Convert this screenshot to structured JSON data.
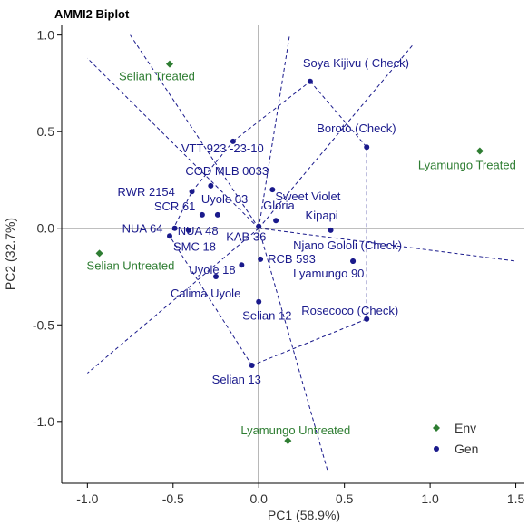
{
  "chart_data": {
    "type": "scatter",
    "title": "AMMI2 Biplot",
    "xlabel": "PC1 (58.9%)",
    "ylabel": "PC2 (32.7%)",
    "xlim": [
      -1.15,
      1.55
    ],
    "ylim": [
      -1.32,
      1.05
    ],
    "xticks": [
      -1.0,
      -0.5,
      0.0,
      0.5,
      1.0,
      1.5
    ],
    "xtick_labels": [
      "-1.0",
      "-0.5",
      "0.0",
      "0.5",
      "1.0",
      "1.5"
    ],
    "yticks": [
      -1.0,
      -0.5,
      0.0,
      0.5,
      1.0
    ],
    "ytick_labels": [
      "-1.0",
      "-0.5",
      "0.0",
      "0.5",
      "1.0"
    ],
    "legend_position": "bottom-right",
    "series": [
      {
        "name": "Env",
        "color": "#2e7d32",
        "marker": "diamond",
        "points": [
          {
            "label": "Selian Treated",
            "x": -0.52,
            "y": 0.85
          },
          {
            "label": "Lyamungo Treated",
            "x": 1.29,
            "y": 0.4
          },
          {
            "label": "Selian Untreated",
            "x": -0.93,
            "y": -0.13
          },
          {
            "label": "Lyamungo Untreated",
            "x": 0.17,
            "y": -1.1
          }
        ]
      },
      {
        "name": "Gen",
        "color": "#1a1a8c",
        "marker": "circle",
        "points": [
          {
            "label": "Soya Kijivu ( Check)",
            "x": 0.3,
            "y": 0.76
          },
          {
            "label": "VTT 923 -23-10",
            "x": -0.15,
            "y": 0.45
          },
          {
            "label": "Boroto (Check)",
            "x": 0.63,
            "y": 0.42
          },
          {
            "label": "COD MLB 0033",
            "x": -0.28,
            "y": 0.22
          },
          {
            "label": "RWR 2154",
            "x": -0.39,
            "y": 0.19
          },
          {
            "label": "Sweet Violet",
            "x": 0.08,
            "y": 0.2
          },
          {
            "label": "SCR 61",
            "x": -0.33,
            "y": 0.07
          },
          {
            "label": "Uyole 03",
            "x": -0.24,
            "y": 0.07
          },
          {
            "label": "Gloria",
            "x": 0.1,
            "y": 0.04
          },
          {
            "label": "NUA 64",
            "x": -0.49,
            "y": 0.0
          },
          {
            "label": "NUA 48",
            "x": -0.41,
            "y": -0.01
          },
          {
            "label": "KAB 36",
            "x": 0.0,
            "y": 0.01
          },
          {
            "label": "Kipapi",
            "x": 0.42,
            "y": -0.01
          },
          {
            "label": "SMC 18",
            "x": -0.52,
            "y": -0.04
          },
          {
            "label": "RCB 593",
            "x": 0.01,
            "y": -0.16
          },
          {
            "label": "Njano Gololi (Check)",
            "x": 0.55,
            "y": -0.17
          },
          {
            "label": "Uyole 18",
            "x": -0.1,
            "y": -0.19
          },
          {
            "label": "Lyamungo 90",
            "x": 0.55,
            "y": -0.17
          },
          {
            "label": "Calima Uyole",
            "x": -0.25,
            "y": -0.25
          },
          {
            "label": "Selian 12",
            "x": 0.0,
            "y": -0.38
          },
          {
            "label": "Rosecoco (Check)",
            "x": 0.63,
            "y": -0.47
          },
          {
            "label": "Selian 13",
            "x": -0.04,
            "y": -0.71
          }
        ]
      }
    ],
    "hull_vertices": [
      "Soya Kijivu ( Check)",
      "Boroto (Check)",
      "Rosecoco (Check)",
      "Selian 13",
      "SMC 18",
      "RWR 2154",
      "VTT 923 -23-10"
    ],
    "sector_rays_end": [
      {
        "x": 0.9,
        "y": 0.95
      },
      {
        "x": -0.75,
        "y": 1.0
      },
      {
        "x": -1.0,
        "y": 0.88
      },
      {
        "x": -1.0,
        "y": -0.75
      },
      {
        "x": 0.4,
        "y": -1.25
      },
      {
        "x": 1.5,
        "y": -0.17
      },
      {
        "x": 0.18,
        "y": 1.0
      }
    ]
  }
}
